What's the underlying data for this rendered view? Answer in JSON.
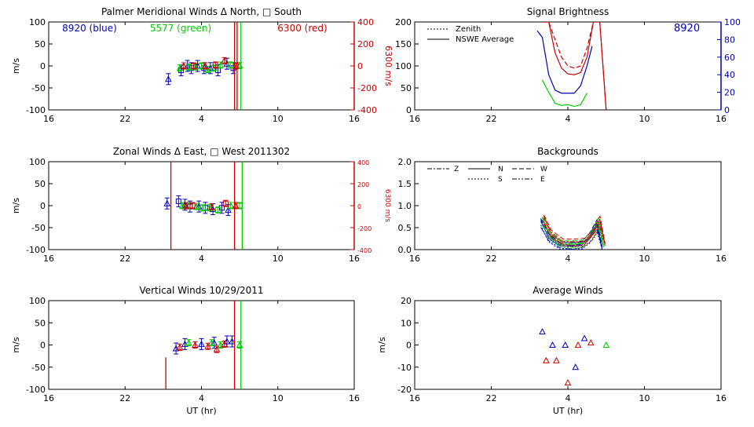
{
  "colors": {
    "blue": "#0000b4",
    "green": "#00cc00",
    "red": "#cc0000",
    "axis": "#000000"
  },
  "x_axis": {
    "ticks": [
      "16",
      "22",
      "4",
      "10",
      "16"
    ],
    "tick_hours": [
      16,
      22,
      28,
      34,
      40
    ],
    "range_hours": [
      16,
      40
    ],
    "label": "UT (hr)"
  },
  "charts": {
    "meridional": {
      "title": "Palmer Meridional Winds Δ North, □ South",
      "ylabel": "m/s",
      "yticks": [
        "100",
        "50",
        "0",
        "-50",
        "-100"
      ],
      "ylim": [
        -100,
        100
      ],
      "right_ylabel": "6300 m/s",
      "right_yticks": [
        "400",
        "200",
        "0",
        "-200",
        "-400"
      ],
      "legend": {
        "blue": "8920 (blue)",
        "green": "5577 (green)",
        "red": "6300 (red)"
      }
    },
    "brightness": {
      "title": "Signal Brightness",
      "yticks": [
        "200",
        "150",
        "100",
        "50",
        "0"
      ],
      "ylim": [
        0,
        200
      ],
      "right_yticks": [
        "100",
        "80",
        "60",
        "40",
        "20",
        "0"
      ],
      "legend": {
        "zenith": "Zenith",
        "average": "NSWE Average"
      },
      "annotation": "8920"
    },
    "zonal": {
      "title": "Zonal Winds Δ East, □ West 2011302",
      "ylabel": "m/s",
      "yticks": [
        "100",
        "50",
        "0",
        "-50",
        "-100"
      ],
      "ylim": [
        -100,
        100
      ],
      "right_ylabel": "6300 m/s",
      "right_yticks": [
        "400",
        "200",
        "0",
        "-200",
        "-400"
      ]
    },
    "backgrounds": {
      "title": "Backgrounds",
      "yticks": [
        "2.0",
        "1.5",
        "1.0",
        "0.5",
        "0.0"
      ],
      "ylim": [
        0,
        2
      ],
      "legend": {
        "z": "Z",
        "n": "N",
        "w": "W",
        "s": "S",
        "e": "E"
      }
    },
    "vertical": {
      "title": "Vertical Winds 10/29/2011",
      "ylabel": "m/s",
      "yticks": [
        "100",
        "50",
        "0",
        "-50",
        "-100"
      ],
      "ylim": [
        -100,
        100
      ]
    },
    "average": {
      "title": "Average Winds",
      "ylabel": "m/s",
      "yticks": [
        "20",
        "10",
        "0",
        "-10",
        "-20"
      ],
      "ylim": [
        -20,
        20
      ]
    }
  },
  "chart_data": [
    {
      "type": "scatter",
      "title": "Palmer Meridional Winds Δ North, □ South",
      "ylabel": "m/s",
      "ylim": [
        -100,
        100
      ],
      "series": [
        {
          "name": "8920 (blue)",
          "x": [
            25.4,
            26.4,
            26.9,
            27.2,
            27.7,
            28.2,
            28.7,
            29.3,
            30.0,
            30.5
          ],
          "y": [
            -30,
            -10,
            0,
            -5,
            0,
            -5,
            -5,
            -10,
            5,
            -5
          ]
        },
        {
          "name": "5577 (green)",
          "x": [
            26.3,
            27.0,
            27.5,
            28.0,
            28.5,
            29.0,
            29.5,
            30.3,
            31.0
          ],
          "y": [
            -5,
            -3,
            -2,
            0,
            -8,
            -5,
            2,
            2,
            1
          ]
        },
        {
          "name": "6300 (red)",
          "x": [
            26.6,
            27.4,
            28.3,
            29.1,
            29.8,
            30.7
          ],
          "y": [
            0,
            0,
            0,
            2,
            12,
            0
          ]
        }
      ],
      "vertical_lines": [
        {
          "series": "6300 (red)",
          "x": [
            30.6,
            30.8
          ]
        },
        {
          "series": "5577 (green)",
          "x": [
            31.1
          ]
        }
      ]
    },
    {
      "type": "line",
      "title": "Signal Brightness",
      "ylim": [
        0,
        200
      ],
      "series": [
        {
          "name": "Zenith 6300",
          "x": [
            26.0,
            26.5,
            27.0,
            27.5,
            28.0,
            28.5,
            29.0,
            29.5,
            30.0,
            30.5,
            31.0
          ],
          "y": [
            200,
            200,
            160,
            120,
            100,
            95,
            100,
            140,
            200,
            200,
            0
          ]
        },
        {
          "name": "NSWE Average 6300",
          "x": [
            26.0,
            26.5,
            27.0,
            27.5,
            28.0,
            28.5,
            29.0,
            29.5,
            30.0,
            30.5,
            31.0
          ],
          "y": [
            200,
            200,
            130,
            95,
            82,
            80,
            85,
            120,
            200,
            200,
            0
          ]
        },
        {
          "name": "NSWE Average 8920",
          "x": [
            25.6,
            26.0,
            26.5,
            27.0,
            27.5,
            28.0,
            28.5,
            29.0,
            29.5,
            29.9
          ],
          "y": [
            180,
            165,
            80,
            45,
            38,
            38,
            38,
            55,
            100,
            145
          ]
        },
        {
          "name": "NSWE Average 5577",
          "x": [
            26.0,
            26.5,
            27.0,
            27.5,
            28.0,
            28.5,
            29.0,
            29.5
          ],
          "y": [
            68,
            40,
            15,
            10,
            12,
            8,
            12,
            38
          ]
        }
      ]
    },
    {
      "type": "scatter",
      "title": "Zonal Winds Δ East, □ West 2011302",
      "ylabel": "m/s",
      "ylim": [
        -100,
        100
      ],
      "series": [
        {
          "name": "8920 (blue)",
          "x": [
            25.3,
            26.2,
            26.7,
            27.1,
            27.8,
            28.3,
            28.9,
            29.6,
            30.1
          ],
          "y": [
            5,
            10,
            2,
            -2,
            -2,
            -5,
            -8,
            -5,
            -10
          ]
        },
        {
          "name": "5577 (green)",
          "x": [
            26.5,
            27.1,
            27.6,
            28.1,
            28.6,
            29.3,
            30.3,
            31.0
          ],
          "y": [
            0,
            0,
            -2,
            -5,
            -5,
            -10,
            0,
            0
          ]
        },
        {
          "name": "6300 (red)",
          "x": [
            26.8,
            27.3,
            28.8,
            29.9,
            30.7
          ],
          "y": [
            0,
            0,
            -3,
            5,
            0
          ]
        }
      ],
      "vertical_lines": [
        {
          "series": "6300 (red)",
          "x": [
            25.6,
            30.6
          ]
        },
        {
          "series": "5577 (green)",
          "x": [
            31.2
          ]
        }
      ]
    },
    {
      "type": "line",
      "title": "Backgrounds",
      "ylim": [
        0,
        2
      ],
      "series": [
        {
          "name": "Z",
          "x": [
            26.0,
            26.6,
            27.5,
            28.5,
            29.2,
            29.8,
            30.4,
            30.8
          ],
          "y": [
            0.68,
            0.35,
            0.15,
            0.14,
            0.16,
            0.35,
            0.65,
            0.1
          ]
        },
        {
          "name": "N",
          "x": [
            26.0,
            26.6,
            27.5,
            28.5,
            29.2,
            29.8,
            30.4,
            30.8
          ],
          "y": [
            0.72,
            0.3,
            0.12,
            0.12,
            0.14,
            0.3,
            0.6,
            0.05
          ]
        },
        {
          "name": "S",
          "x": [
            26.0,
            26.6,
            27.5,
            28.5,
            29.2,
            29.8,
            30.4,
            30.8
          ],
          "y": [
            0.6,
            0.22,
            0.05,
            0.02,
            0.05,
            0.18,
            0.45,
            0.05
          ]
        },
        {
          "name": "W",
          "x": [
            26.0,
            26.6,
            27.5,
            28.5,
            29.2,
            29.8,
            30.4,
            30.8
          ],
          "y": [
            0.75,
            0.4,
            0.2,
            0.2,
            0.22,
            0.4,
            0.72,
            0.1
          ]
        },
        {
          "name": "E",
          "x": [
            26.0,
            26.6,
            27.5,
            28.5,
            29.2,
            29.8,
            30.4,
            30.8
          ],
          "y": [
            0.55,
            0.25,
            0.08,
            0.05,
            0.08,
            0.28,
            0.5,
            0.08
          ]
        }
      ]
    },
    {
      "type": "scatter",
      "title": "Vertical Winds 10/29/2011",
      "ylabel": "m/s",
      "ylim": [
        -100,
        100
      ],
      "series": [
        {
          "name": "8920 (blue)",
          "x": [
            26.0,
            26.7,
            28.0,
            29.0,
            30.0,
            30.4
          ],
          "y": [
            -8,
            2,
            2,
            5,
            8,
            8
          ]
        },
        {
          "name": "5577 (green)",
          "x": [
            27.0,
            28.8,
            29.5,
            31.0
          ],
          "y": [
            5,
            5,
            0,
            0
          ]
        },
        {
          "name": "6300 (red)",
          "x": [
            26.3,
            27.5,
            28.5,
            29.2,
            29.8
          ],
          "y": [
            -5,
            0,
            -3,
            -10,
            2
          ]
        }
      ],
      "vertical_lines": [
        {
          "series": "6300 (red)",
          "x": [
            25.2,
            30.6
          ],
          "y_bottom": -100,
          "y_top": [
            -28,
            100
          ]
        },
        {
          "series": "5577 (green)",
          "x": [
            31.1
          ]
        }
      ]
    },
    {
      "type": "scatter",
      "title": "Average Winds",
      "ylabel": "m/s",
      "ylim": [
        -20,
        20
      ],
      "series": [
        {
          "name": "8920 (blue)",
          "x": [
            26.0,
            26.8,
            27.8,
            28.6,
            29.3
          ],
          "y": [
            6,
            0,
            0,
            -10,
            3
          ]
        },
        {
          "name": "5577 (green)",
          "x": [
            31.0
          ],
          "y": [
            0
          ]
        },
        {
          "name": "6300 (red)",
          "x": [
            26.3,
            27.1,
            28.0,
            28.8,
            29.8
          ],
          "y": [
            -7,
            -7,
            -17,
            0,
            1
          ]
        }
      ]
    }
  ]
}
